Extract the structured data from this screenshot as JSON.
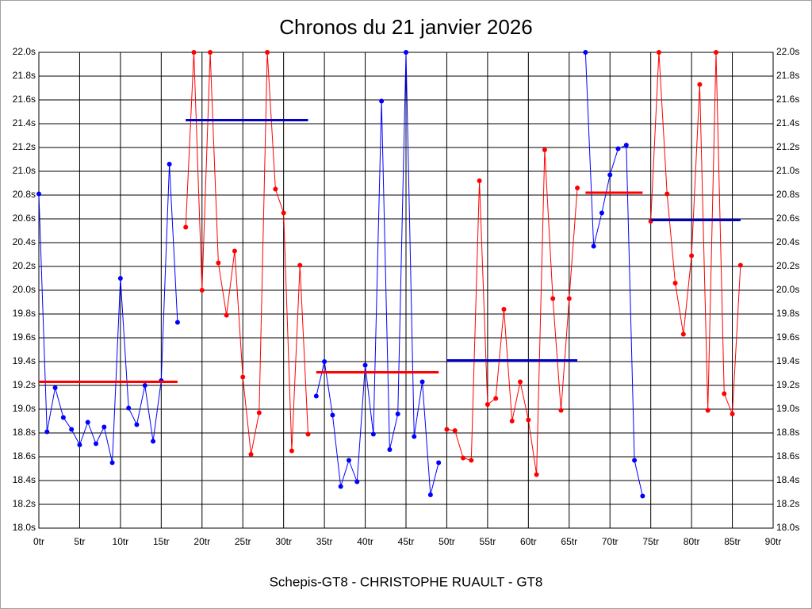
{
  "chart_data": {
    "type": "line",
    "title": "Chronos du 21 janvier 2026",
    "footer": "Schepis-GT8 - CHRISTOPHE RUAULT - GT8",
    "xlim": [
      0,
      90
    ],
    "ylim": [
      18.0,
      22.0
    ],
    "grid": true,
    "xticks": [
      {
        "value": 0,
        "label": "0tr"
      },
      {
        "value": 5,
        "label": "5tr"
      },
      {
        "value": 10,
        "label": "10tr"
      },
      {
        "value": 15,
        "label": "15tr"
      },
      {
        "value": 20,
        "label": "20tr"
      },
      {
        "value": 25,
        "label": "25tr"
      },
      {
        "value": 30,
        "label": "30tr"
      },
      {
        "value": 35,
        "label": "35tr"
      },
      {
        "value": 40,
        "label": "40tr"
      },
      {
        "value": 45,
        "label": "45tr"
      },
      {
        "value": 50,
        "label": "50tr"
      },
      {
        "value": 55,
        "label": "55tr"
      },
      {
        "value": 60,
        "label": "60tr"
      },
      {
        "value": 65,
        "label": "65tr"
      },
      {
        "value": 70,
        "label": "70tr"
      },
      {
        "value": 75,
        "label": "75tr"
      },
      {
        "value": 80,
        "label": "80tr"
      },
      {
        "value": 85,
        "label": "85tr"
      },
      {
        "value": 90,
        "label": "90tr"
      }
    ],
    "yticks": [
      {
        "value": 18.0,
        "label": "18.0s"
      },
      {
        "value": 18.2,
        "label": "18.2s"
      },
      {
        "value": 18.4,
        "label": "18.4s"
      },
      {
        "value": 18.6,
        "label": "18.6s"
      },
      {
        "value": 18.8,
        "label": "18.8s"
      },
      {
        "value": 19.0,
        "label": "19.0s"
      },
      {
        "value": 19.2,
        "label": "19.2s"
      },
      {
        "value": 19.4,
        "label": "19.4s"
      },
      {
        "value": 19.6,
        "label": "19.6s"
      },
      {
        "value": 19.8,
        "label": "19.8s"
      },
      {
        "value": 20.0,
        "label": "20.0s"
      },
      {
        "value": 20.2,
        "label": "20.2s"
      },
      {
        "value": 20.4,
        "label": "20.4s"
      },
      {
        "value": 20.6,
        "label": "20.6s"
      },
      {
        "value": 20.8,
        "label": "20.8s"
      },
      {
        "value": 21.0,
        "label": "21.0s"
      },
      {
        "value": 21.2,
        "label": "21.2s"
      },
      {
        "value": 21.4,
        "label": "21.4s"
      },
      {
        "value": 21.6,
        "label": "21.6s"
      },
      {
        "value": 21.8,
        "label": "21.8s"
      },
      {
        "value": 22.0,
        "label": "22.0s"
      }
    ],
    "series": [
      {
        "color": "#0000ff",
        "x": [
          0,
          1,
          2,
          3,
          4,
          5,
          6,
          7,
          8,
          9,
          10,
          11,
          12,
          13,
          14,
          15,
          16,
          17
        ],
        "values": [
          20.81,
          18.81,
          19.18,
          18.93,
          18.83,
          18.7,
          18.89,
          18.71,
          18.85,
          18.55,
          20.1,
          19.01,
          18.87,
          19.2,
          18.73,
          19.24,
          21.06,
          19.73
        ]
      },
      {
        "color": "#ff0000",
        "x": [
          18,
          19,
          20,
          21,
          22,
          23,
          24,
          25,
          26,
          27,
          28,
          29,
          30,
          31,
          32,
          33
        ],
        "values": [
          20.53,
          22.0,
          20.0,
          22.0,
          20.23,
          19.79,
          20.33,
          19.27,
          18.62,
          18.97,
          22.0,
          20.85,
          20.65,
          18.65,
          20.21,
          18.79
        ]
      },
      {
        "color": "#0000ff",
        "x": [
          34,
          35,
          36,
          37,
          38,
          39,
          40,
          41,
          42,
          43,
          44,
          45,
          46,
          47,
          48,
          49
        ],
        "values": [
          19.11,
          19.4,
          18.95,
          18.35,
          18.57,
          18.39,
          19.37,
          18.79,
          21.59,
          18.66,
          18.96,
          22.0,
          18.77,
          19.23,
          18.28,
          18.55
        ]
      },
      {
        "color": "#ff0000",
        "x": [
          50,
          51,
          52,
          53,
          54,
          55,
          56,
          57,
          58,
          59,
          60,
          61,
          62,
          63,
          64,
          65,
          66
        ],
        "values": [
          18.83,
          18.82,
          18.59,
          18.57,
          20.92,
          19.04,
          19.09,
          19.84,
          18.9,
          19.23,
          18.91,
          18.45,
          21.18,
          19.93,
          18.99,
          19.93,
          20.86
        ]
      },
      {
        "color": "#0000ff",
        "x": [
          67,
          68,
          69,
          70,
          71,
          72,
          73,
          74
        ],
        "values": [
          22.0,
          20.37,
          20.65,
          20.97,
          21.19,
          21.22,
          18.57,
          18.27
        ]
      },
      {
        "color": "#ff0000",
        "x": [
          75,
          76,
          77,
          78,
          79,
          80,
          81,
          82,
          83,
          84,
          85,
          86
        ],
        "values": [
          20.58,
          22.0,
          20.81,
          20.06,
          19.63,
          20.29,
          21.73,
          18.99,
          22.0,
          19.13,
          18.96,
          20.21
        ]
      }
    ],
    "averages": [
      {
        "color": "#ff0000",
        "x": [
          0,
          17
        ],
        "value": 19.23
      },
      {
        "color": "#0000cc",
        "x": [
          18,
          33
        ],
        "value": 21.43
      },
      {
        "color": "#ff0000",
        "x": [
          34,
          49
        ],
        "value": 19.31
      },
      {
        "color": "#0000cc",
        "x": [
          50,
          66
        ],
        "value": 19.41
      },
      {
        "color": "#ff0000",
        "x": [
          67,
          74
        ],
        "value": 20.82
      },
      {
        "color": "#0000cc",
        "x": [
          75,
          86
        ],
        "value": 20.59
      }
    ]
  }
}
